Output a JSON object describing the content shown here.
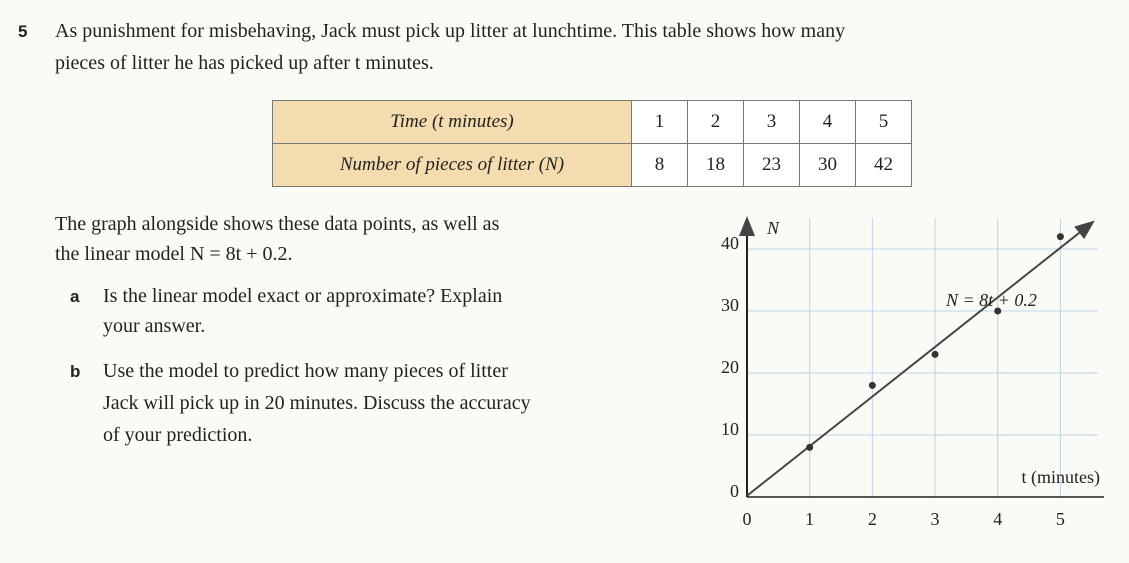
{
  "question": {
    "number": "5",
    "lines": [
      "As punishment for misbehaving, Jack must pick up litter at lunchtime. This table shows how many",
      "pieces of litter he has picked up after t minutes."
    ]
  },
  "table": {
    "rows": [
      [
        "Time (t minutes)",
        1,
        2,
        3,
        4,
        5
      ],
      [
        "Number of pieces of litter (N)",
        8,
        18,
        23,
        30,
        42
      ]
    ]
  },
  "intro": [
    "The graph alongside shows these data points, as well as",
    "the linear model N = 8t + 0.2."
  ],
  "parts": [
    {
      "label": "a",
      "lines": [
        "Is the linear model exact or approximate? Explain",
        "your answer."
      ]
    },
    {
      "label": "b",
      "lines": [
        "Use the model to predict how many pieces of litter",
        "Jack will pick up in 20 minutes. Discuss the accuracy",
        "of your prediction."
      ]
    }
  ],
  "chart_data": {
    "type": "scatter",
    "x_label": "t (minutes)",
    "y_label": "N",
    "x": [
      1,
      2,
      3,
      4,
      5
    ],
    "values": [
      8,
      18,
      23,
      30,
      42
    ],
    "color": "#333333",
    "model_line": {
      "label": "N = 8t + 0.2",
      "x": [
        0,
        5.5
      ],
      "values": [
        0.2,
        44.2
      ],
      "color": "#444444"
    },
    "xlim": [
      0,
      5.6
    ],
    "ylim": [
      0,
      45
    ],
    "xticks": [
      0,
      1,
      2,
      3,
      4,
      5
    ],
    "yticks": [
      0,
      10,
      20,
      30,
      40
    ],
    "grid": true
  }
}
